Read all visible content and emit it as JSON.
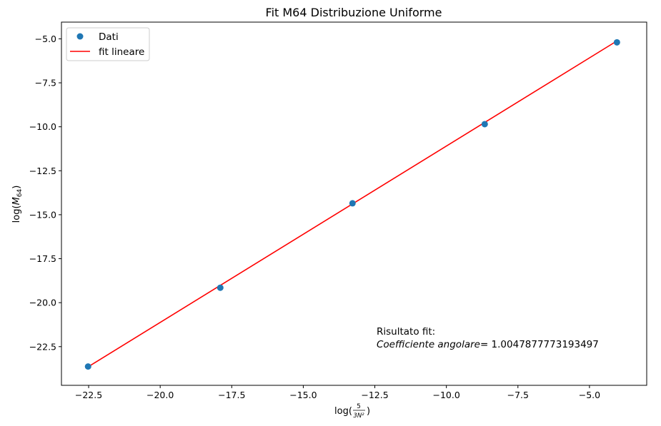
{
  "chart_data": {
    "type": "scatter",
    "title": "Fit M64 Distribuzione Uniforme",
    "xlabel": "log(5/(3N²))",
    "ylabel": "log(M64)",
    "xlim": [
      -23.45,
      -3.0
    ],
    "ylim": [
      -24.7,
      -4.05
    ],
    "xticks": [
      -22.5,
      -20.0,
      -17.5,
      -15.0,
      -12.5,
      -10.0,
      -7.5,
      -5.0
    ],
    "yticks": [
      -22.5,
      -20.0,
      -17.5,
      -15.0,
      -12.5,
      -10.0,
      -7.5,
      -5.0
    ],
    "series": [
      {
        "name": "Dati",
        "kind": "scatter",
        "color": "#1f77b4",
        "x": [
          -22.52,
          -17.9,
          -13.28,
          -8.66,
          -4.04
        ],
        "y": [
          -23.63,
          -19.15,
          -14.35,
          -9.85,
          -5.2
        ]
      },
      {
        "name": "fit lineare",
        "kind": "line",
        "color": "#ff0000",
        "x": [
          -22.52,
          -4.04
        ],
        "y": [
          -23.65,
          -5.12
        ]
      }
    ],
    "legend": "top-left",
    "annotation": {
      "line1": "Risultato fit:",
      "label": "Coefficiente angolare",
      "value": "= 1.0047877773193497"
    }
  }
}
